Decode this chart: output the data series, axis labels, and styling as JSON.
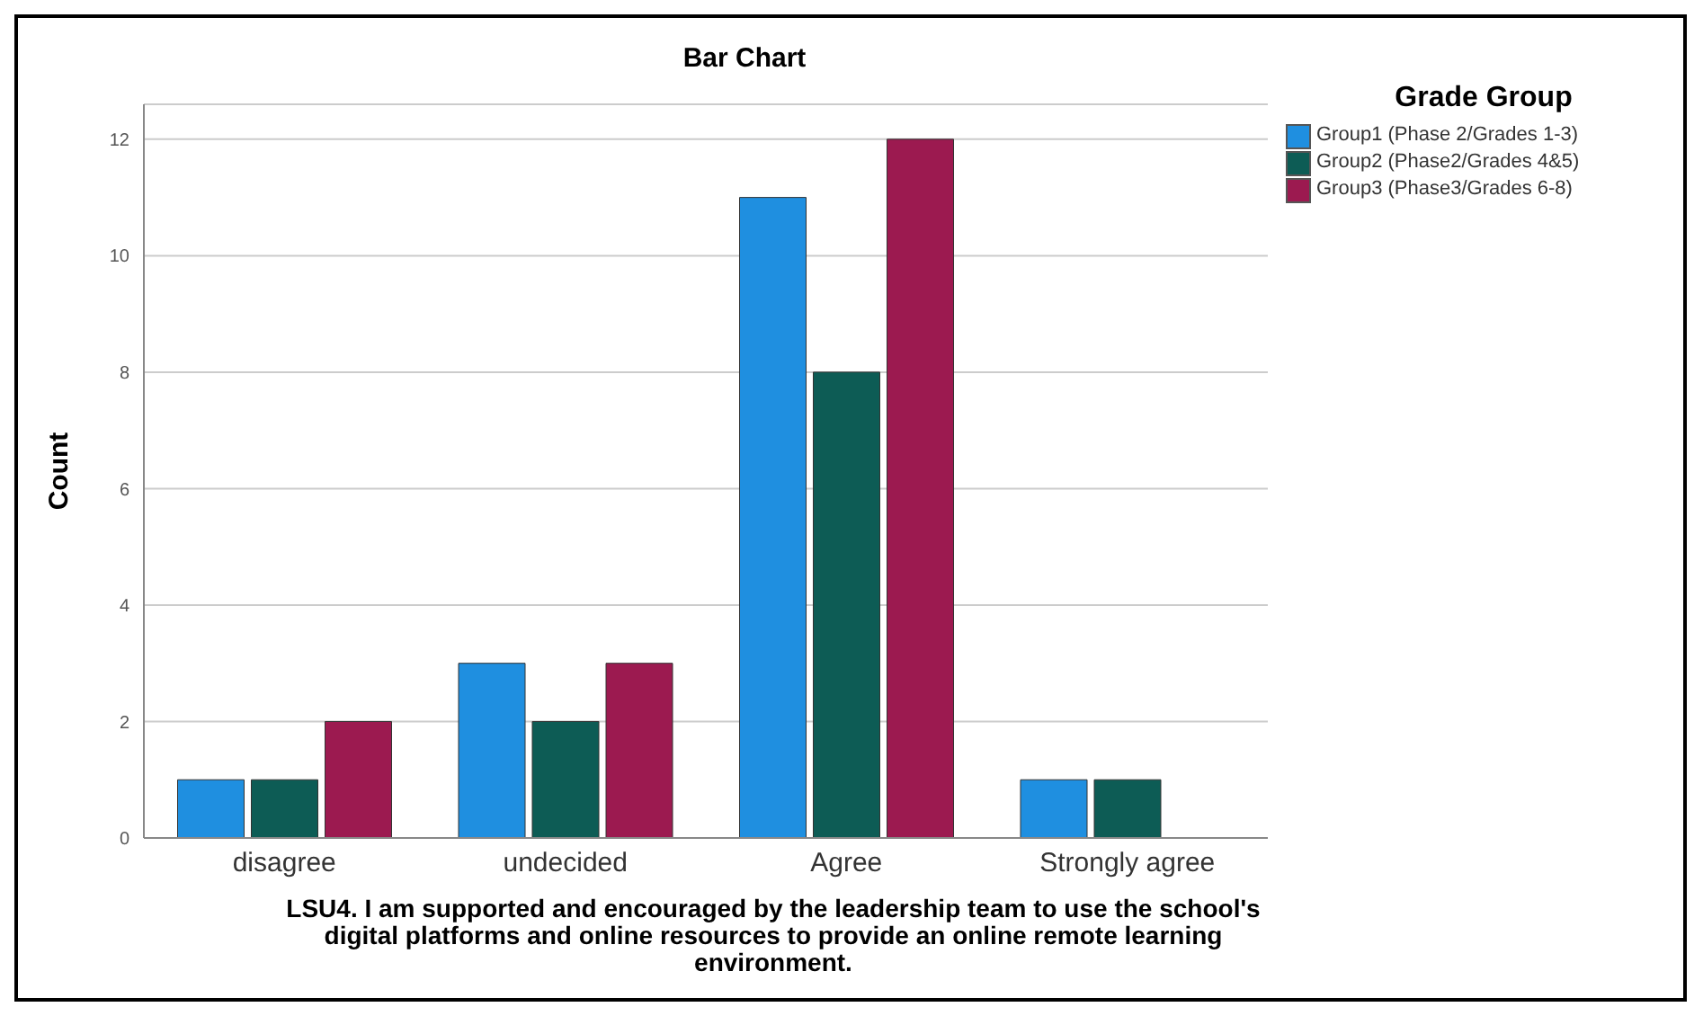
{
  "chart_data": {
    "type": "bar",
    "title": "Bar Chart",
    "xlabel": "LSU4. I am supported and encouraged by the leadership team to use the school's digital platforms and online resources to provide an online remote learning environment.",
    "ylabel": "Count",
    "legend_title": "Grade Group",
    "categories": [
      "disagree",
      "undecided",
      "Agree",
      "Strongly agree"
    ],
    "series": [
      {
        "name": "Group1 (Phase 2/Grades 1-3)",
        "color": "#1f8fe0",
        "values": [
          1,
          3,
          11,
          1
        ]
      },
      {
        "name": "Group2 (Phase2/Grades 4&5)",
        "color": "#0d5c55",
        "values": [
          1,
          2,
          8,
          1
        ]
      },
      {
        "name": "Group3 (Phase3/Grades 6-8)",
        "color": "#9c1a50",
        "values": [
          2,
          3,
          12,
          0
        ]
      }
    ],
    "ylim": [
      0,
      12.6
    ],
    "yticks": [
      0,
      2,
      4,
      6,
      8,
      10,
      12
    ],
    "grid": "y",
    "legend": "top right"
  }
}
